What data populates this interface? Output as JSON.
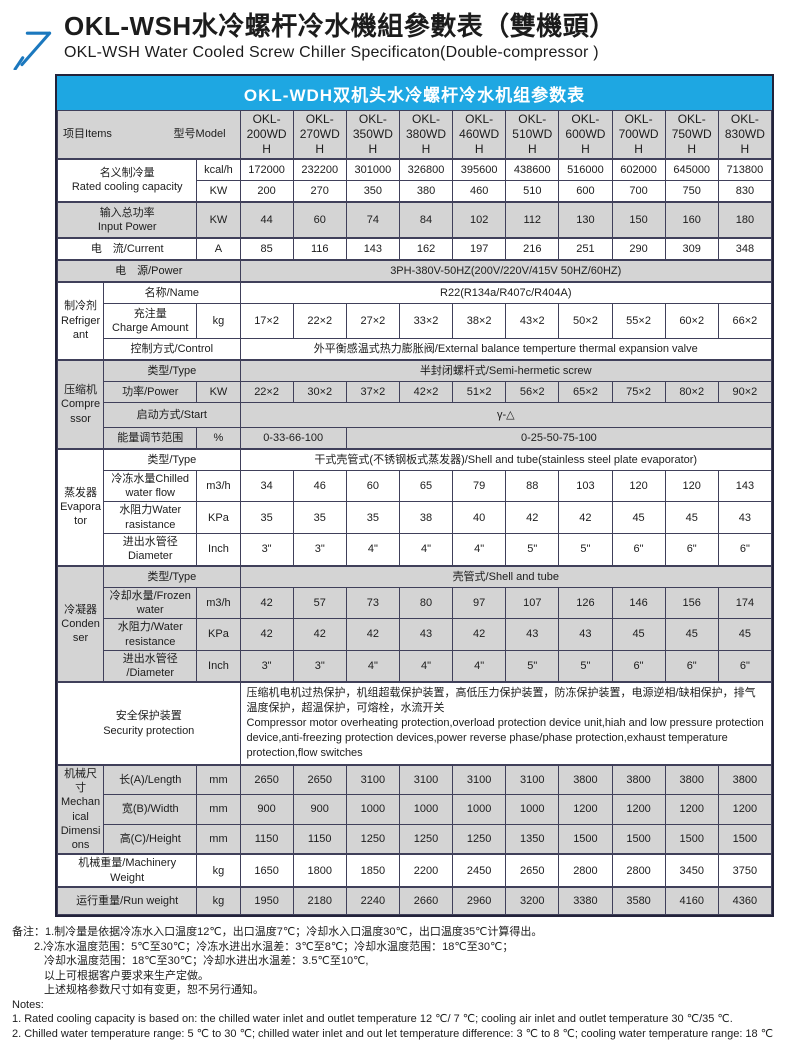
{
  "header": {
    "title_zh": "OKL-WSH水冷螺杆冷水機組參數表（雙機頭）",
    "title_en": "OKL-WSH Water Cooled Screw Chiller Specificaton(Double-compressor )"
  },
  "banner": {
    "title": "OKL-WDH双机头水冷螺杆冷水机组参数表"
  },
  "colors": {
    "banner_bg": "#1ea7e2",
    "banner_text": "#ffffff",
    "row_gray": "#d4d4d4",
    "grid_border": "#40405a",
    "logo_blue": "#1b78be"
  },
  "table": {
    "corner": {
      "items": "项目Items",
      "model": "型号Model"
    },
    "rows": [
      {
        "shade": "g",
        "h": "hh",
        "cells": [
          {
            "k": "c",
            "cs": 3
          },
          {
            "k": "m",
            "t": "OKL-\n200WDH"
          },
          {
            "k": "m",
            "t": "OKL-\n270WDH"
          },
          {
            "k": "m",
            "t": "OKL-\n350WDH"
          },
          {
            "k": "m",
            "t": "OKL-\n380WDH"
          },
          {
            "k": "m",
            "t": "OKL-\n460WDH"
          },
          {
            "k": "m",
            "t": "OKL-\n510WDH"
          },
          {
            "k": "m",
            "t": "OKL-\n600WDH"
          },
          {
            "k": "m",
            "t": "OKL-\n700WDH"
          },
          {
            "k": "m",
            "t": "OKL-\n750WDH"
          },
          {
            "k": "m",
            "t": "OKL-\n830WDH"
          }
        ]
      },
      {
        "shade": "w",
        "sep": true,
        "cells": [
          {
            "k": "l",
            "t": "名义制冷量\nRated cooling capacity",
            "cs": 2,
            "rs": 2
          },
          {
            "k": "u",
            "t": "kcal/h"
          },
          {
            "t": "172000"
          },
          {
            "t": "232200"
          },
          {
            "t": "301000"
          },
          {
            "t": "326800"
          },
          {
            "t": "395600"
          },
          {
            "t": "438600"
          },
          {
            "t": "516000"
          },
          {
            "t": "602000"
          },
          {
            "t": "645000"
          },
          {
            "t": "713800"
          }
        ]
      },
      {
        "shade": "w",
        "cells": [
          {
            "k": "u",
            "t": "KW"
          },
          {
            "t": "200"
          },
          {
            "t": "270"
          },
          {
            "t": "350"
          },
          {
            "t": "380"
          },
          {
            "t": "460"
          },
          {
            "t": "510"
          },
          {
            "t": "600"
          },
          {
            "t": "700"
          },
          {
            "t": "750"
          },
          {
            "t": "830"
          }
        ]
      },
      {
        "shade": "g",
        "sep": true,
        "h": "h34",
        "cells": [
          {
            "k": "l",
            "t": "输入总功率\nInput Power",
            "cs": 2
          },
          {
            "k": "u",
            "t": "KW"
          },
          {
            "t": "44"
          },
          {
            "t": "60"
          },
          {
            "t": "74"
          },
          {
            "t": "84"
          },
          {
            "t": "102"
          },
          {
            "t": "112"
          },
          {
            "t": "130"
          },
          {
            "t": "150"
          },
          {
            "t": "160"
          },
          {
            "t": "180"
          }
        ]
      },
      {
        "shade": "w",
        "sep": true,
        "cells": [
          {
            "k": "l",
            "t": "电　流/Current",
            "cs": 2
          },
          {
            "k": "u",
            "t": "A"
          },
          {
            "t": "85"
          },
          {
            "t": "116"
          },
          {
            "t": "143"
          },
          {
            "t": "162"
          },
          {
            "t": "197"
          },
          {
            "t": "216"
          },
          {
            "t": "251"
          },
          {
            "t": "290"
          },
          {
            "t": "309"
          },
          {
            "t": "348"
          }
        ]
      },
      {
        "shade": "g",
        "sep": true,
        "cells": [
          {
            "k": "l",
            "t": "电　源/Power",
            "cs": 3
          },
          {
            "k": "v",
            "t": "3PH-380V-50HZ(200V/220V/415V  50HZ/60HZ)",
            "cs": 10
          }
        ]
      },
      {
        "shade": "w",
        "sep": true,
        "cells": [
          {
            "k": "g",
            "t": "制冷剂\nRefrigerant",
            "rs": 3
          },
          {
            "k": "l",
            "t": "名称/Name",
            "cs": 2
          },
          {
            "k": "v",
            "t": "R22(R134a/R407c/R404A)",
            "cs": 10
          }
        ]
      },
      {
        "shade": "w",
        "h": "h34",
        "cells": [
          {
            "k": "l",
            "t": "充注量\nCharge Amount"
          },
          {
            "k": "u",
            "t": "kg"
          },
          {
            "t": "17×2"
          },
          {
            "t": "22×2"
          },
          {
            "t": "27×2"
          },
          {
            "t": "33×2"
          },
          {
            "t": "38×2"
          },
          {
            "t": "43×2"
          },
          {
            "t": "50×2"
          },
          {
            "t": "55×2"
          },
          {
            "t": "60×2"
          },
          {
            "t": "66×2"
          }
        ]
      },
      {
        "shade": "w",
        "cells": [
          {
            "k": "l",
            "t": "控制方式/Control",
            "cs": 2
          },
          {
            "k": "v",
            "t": "外平衡感温式热力膨胀阀/External balance temperture thermal expansion valve",
            "cs": 10
          }
        ]
      },
      {
        "shade": "g",
        "sep": true,
        "cells": [
          {
            "k": "g",
            "t": "压缩机\nCompressor",
            "rs": 4
          },
          {
            "k": "l",
            "t": "类型/Type",
            "cs": 2
          },
          {
            "k": "v",
            "t": "半封闭螺杆式/Semi-hermetic screw",
            "cs": 10
          }
        ]
      },
      {
        "shade": "g",
        "cells": [
          {
            "k": "l",
            "t": "功率/Power"
          },
          {
            "k": "u",
            "t": "KW"
          },
          {
            "t": "22×2"
          },
          {
            "t": "30×2"
          },
          {
            "t": "37×2"
          },
          {
            "t": "42×2"
          },
          {
            "t": "51×2"
          },
          {
            "t": "56×2"
          },
          {
            "t": "65×2"
          },
          {
            "t": "75×2"
          },
          {
            "t": "80×2"
          },
          {
            "t": "90×2"
          }
        ]
      },
      {
        "shade": "g",
        "h": "h24",
        "cells": [
          {
            "k": "l",
            "t": "启动方式/Start",
            "cs": 2
          },
          {
            "k": "v",
            "t": "γ-△",
            "cs": 10
          }
        ]
      },
      {
        "shade": "g",
        "cells": [
          {
            "k": "l",
            "t": "能量调节范围"
          },
          {
            "k": "u",
            "t": "%"
          },
          {
            "k": "v",
            "t": "0-33-66-100",
            "cs": 2
          },
          {
            "k": "v",
            "t": "0-25-50-75-100",
            "cs": 8
          }
        ]
      },
      {
        "shade": "w",
        "sep": true,
        "cells": [
          {
            "k": "g",
            "t": "蒸发器\nEvaporator",
            "rs": 4
          },
          {
            "k": "l",
            "t": "类型/Type",
            "cs": 2
          },
          {
            "k": "v",
            "t": "干式壳管式(不锈钢板式蒸发器)/Shell and tube(stainless steel plate evaporator)",
            "cs": 10
          }
        ]
      },
      {
        "shade": "w",
        "cells": [
          {
            "k": "l",
            "t": "冷冻水量Chilled\nwater flow"
          },
          {
            "k": "u",
            "t": "m3/h"
          },
          {
            "t": "34"
          },
          {
            "t": "46"
          },
          {
            "t": "60"
          },
          {
            "t": "65"
          },
          {
            "t": "79"
          },
          {
            "t": "88"
          },
          {
            "t": "103"
          },
          {
            "t": "120"
          },
          {
            "t": "120"
          },
          {
            "t": "143"
          }
        ]
      },
      {
        "shade": "w",
        "cells": [
          {
            "k": "l",
            "t": "水阻力Water\nrasistance"
          },
          {
            "k": "u",
            "t": "KPa"
          },
          {
            "t": "35"
          },
          {
            "t": "35"
          },
          {
            "t": "35"
          },
          {
            "t": "38"
          },
          {
            "t": "40"
          },
          {
            "t": "42"
          },
          {
            "t": "42"
          },
          {
            "t": "45"
          },
          {
            "t": "45"
          },
          {
            "t": "43"
          }
        ]
      },
      {
        "shade": "w",
        "cells": [
          {
            "k": "l",
            "t": "进出水管径\nDiameter"
          },
          {
            "k": "u",
            "t": "Inch"
          },
          {
            "t": "3\""
          },
          {
            "t": "3\""
          },
          {
            "t": "4\""
          },
          {
            "t": "4\""
          },
          {
            "t": "4\""
          },
          {
            "t": "5\""
          },
          {
            "t": "5\""
          },
          {
            "t": "6\""
          },
          {
            "t": "6\""
          },
          {
            "t": "6\""
          }
        ]
      },
      {
        "shade": "g",
        "sep": true,
        "cells": [
          {
            "k": "g",
            "t": "冷凝器\nCondenser",
            "rs": 4
          },
          {
            "k": "l",
            "t": "类型/Type",
            "cs": 2
          },
          {
            "k": "v",
            "t": "壳管式/Shell and tube",
            "cs": 10
          }
        ]
      },
      {
        "shade": "g",
        "cells": [
          {
            "k": "l",
            "t": "冷却水量/Frozen\nwater"
          },
          {
            "k": "u",
            "t": "m3/h"
          },
          {
            "t": "42"
          },
          {
            "t": "57"
          },
          {
            "t": "73"
          },
          {
            "t": "80"
          },
          {
            "t": "97"
          },
          {
            "t": "107"
          },
          {
            "t": "126"
          },
          {
            "t": "146"
          },
          {
            "t": "156"
          },
          {
            "t": "174"
          }
        ]
      },
      {
        "shade": "g",
        "cells": [
          {
            "k": "l",
            "t": "水阻力/Water\nresistance"
          },
          {
            "k": "u",
            "t": "KPa"
          },
          {
            "t": "42"
          },
          {
            "t": "42"
          },
          {
            "t": "42"
          },
          {
            "t": "43"
          },
          {
            "t": "42"
          },
          {
            "t": "43"
          },
          {
            "t": "43"
          },
          {
            "t": "45"
          },
          {
            "t": "45"
          },
          {
            "t": "45"
          }
        ]
      },
      {
        "shade": "g",
        "cells": [
          {
            "k": "l",
            "t": "进出水管径\n/Diameter"
          },
          {
            "k": "u",
            "t": "Inch"
          },
          {
            "t": "3\""
          },
          {
            "t": "3\""
          },
          {
            "t": "4\""
          },
          {
            "t": "4\""
          },
          {
            "t": "4\""
          },
          {
            "t": "5\""
          },
          {
            "t": "5\""
          },
          {
            "t": "6\""
          },
          {
            "t": "6\""
          },
          {
            "t": "6\""
          }
        ]
      },
      {
        "shade": "w",
        "sep": true,
        "cells": [
          {
            "k": "l",
            "t": "安全保护装置\nSecurity protection",
            "cs": 3
          },
          {
            "k": "v",
            "al": 1,
            "cs": 10,
            "t": "压缩机电机过热保护，机组超载保护装置，高低压力保护装置，防冻保护装置，电源逆相/缺相保护，排气温度保护，超温保护，可熔栓，水流开关\nCompressor motor overheating protection,overload protection device unit,hiah and low pressure protection device,anti-freezing protection devices,power reverse phase/phase protection,exhaust temperature protection,flow switches"
          }
        ]
      },
      {
        "shade": "g",
        "sep": true,
        "cells": [
          {
            "k": "g",
            "t": "机械尺寸\nMechanical\nDimensions",
            "rs": 3
          },
          {
            "k": "l",
            "t": "长(A)/Length"
          },
          {
            "k": "u",
            "t": "mm"
          },
          {
            "t": "2650"
          },
          {
            "t": "2650"
          },
          {
            "t": "3100"
          },
          {
            "t": "3100"
          },
          {
            "t": "3100"
          },
          {
            "t": "3100"
          },
          {
            "t": "3800"
          },
          {
            "t": "3800"
          },
          {
            "t": "3800"
          },
          {
            "t": "3800"
          }
        ]
      },
      {
        "shade": "g",
        "cells": [
          {
            "k": "l",
            "t": "宽(B)/Width"
          },
          {
            "k": "u",
            "t": "mm"
          },
          {
            "t": "900"
          },
          {
            "t": "900"
          },
          {
            "t": "1000"
          },
          {
            "t": "1000"
          },
          {
            "t": "1000"
          },
          {
            "t": "1000"
          },
          {
            "t": "1200"
          },
          {
            "t": "1200"
          },
          {
            "t": "1200"
          },
          {
            "t": "1200"
          }
        ]
      },
      {
        "shade": "g",
        "cells": [
          {
            "k": "l",
            "t": "高(C)/Height"
          },
          {
            "k": "u",
            "t": "mm"
          },
          {
            "t": "1150"
          },
          {
            "t": "1150"
          },
          {
            "t": "1250"
          },
          {
            "t": "1250"
          },
          {
            "t": "1250"
          },
          {
            "t": "1350"
          },
          {
            "t": "1500"
          },
          {
            "t": "1500"
          },
          {
            "t": "1500"
          },
          {
            "t": "1500"
          }
        ]
      },
      {
        "shade": "w",
        "sep": true,
        "h": "h26",
        "cells": [
          {
            "k": "l",
            "t": "机械重量/Machinery Weight",
            "cs": 2
          },
          {
            "k": "u",
            "t": "kg"
          },
          {
            "t": "1650"
          },
          {
            "t": "1800"
          },
          {
            "t": "1850"
          },
          {
            "t": "2200"
          },
          {
            "t": "2450"
          },
          {
            "t": "2650"
          },
          {
            "t": "2800"
          },
          {
            "t": "2800"
          },
          {
            "t": "3450"
          },
          {
            "t": "3750"
          }
        ]
      },
      {
        "shade": "g",
        "sep": true,
        "h": "h26",
        "cells": [
          {
            "k": "l",
            "t": "运行重量/Run weight",
            "cs": 2
          },
          {
            "k": "u",
            "t": "kg"
          },
          {
            "t": "1950"
          },
          {
            "t": "2180"
          },
          {
            "t": "2240"
          },
          {
            "t": "2660"
          },
          {
            "t": "2960"
          },
          {
            "t": "3200"
          },
          {
            "t": "3380"
          },
          {
            "t": "3580"
          },
          {
            "t": "4160"
          },
          {
            "t": "4360"
          }
        ]
      }
    ]
  },
  "notes": {
    "lines": [
      {
        "t": "备注：1.制冷量是依据冷冻水入口温度12℃，出口温度7℃；冷却水入口温度30℃，出口温度35℃计算得出。"
      },
      {
        "t": "2.冷冻水温度范围：5℃至30℃；冷冻水进出水温差：3℃至8℃；冷却水温度范围：18℃至30℃；",
        "cls": "ind1"
      },
      {
        "t": "冷却水温度范围：18℃至30℃；冷却水进出水温差：3.5℃至10℃,",
        "cls": "ind2"
      },
      {
        "t": "以上可根据客户要求来生产定做。",
        "cls": "ind2"
      },
      {
        "t": "上述规格参数尺寸如有变更，恕不另行通知。",
        "cls": "ind2"
      },
      {
        "t": "Notes:"
      },
      {
        "t": "1. Rated cooling capacity is based on: the chilled water inlet and outlet temperature 12 ℃/ 7 ℃; cooling air inlet and outlet temperature 30 ℃/35 ℃."
      },
      {
        "t": "2. Chilled water temperature range: 5 ℃ to 30 ℃; chilled water inlet and out let temperature difference: 3 ℃ to 8 ℃; cooling water temperature range: 18 ℃"
      }
    ]
  }
}
